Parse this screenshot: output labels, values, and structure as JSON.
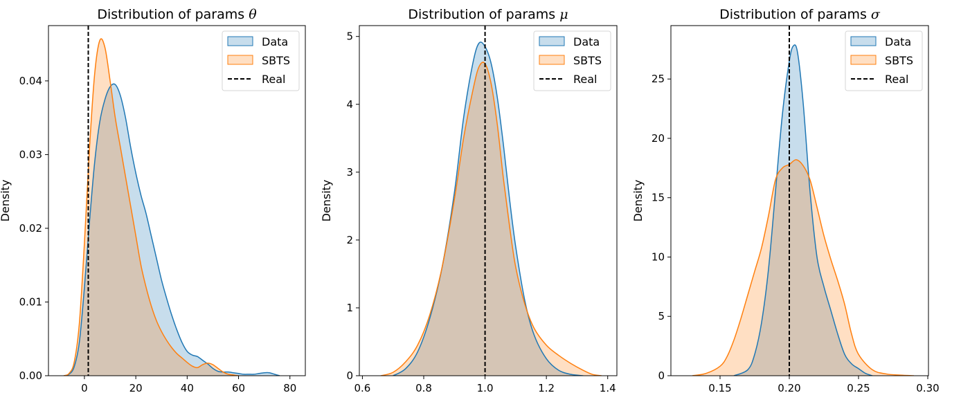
{
  "chart_data": [
    {
      "type": "area",
      "title": "Distribution of params θ",
      "title_text": "Distribution of params ",
      "title_symbol": "θ",
      "xlabel": "",
      "ylabel": "Density",
      "xlim": [
        -14,
        86
      ],
      "ylim": [
        0,
        0.0475
      ],
      "xticks": [
        0,
        20,
        40,
        60,
        80
      ],
      "xtick_labels": [
        "0",
        "20",
        "40",
        "60",
        "80"
      ],
      "yticks": [
        0,
        0.01,
        0.02,
        0.03,
        0.04
      ],
      "ytick_labels": [
        "0.00",
        "0.01",
        "0.02",
        "0.03",
        "0.04"
      ],
      "real_value": 1.5,
      "legend": {
        "placement": "top-right",
        "entries": [
          "Data",
          "SBTS",
          "Real"
        ]
      },
      "series": [
        {
          "name": "Data",
          "color": "#1f77b4",
          "x": [
            -8,
            -6,
            -4,
            -2,
            0,
            2,
            4,
            6,
            8,
            10,
            12,
            14,
            16,
            18,
            20,
            22,
            24,
            26,
            28,
            30,
            32,
            34,
            36,
            38,
            40,
            42,
            44,
            46,
            48,
            50,
            52,
            54,
            56,
            58,
            60,
            62,
            64,
            66,
            68,
            70,
            72,
            74,
            76
          ],
          "y": [
            0,
            0.0002,
            0.0012,
            0.0045,
            0.012,
            0.021,
            0.029,
            0.0345,
            0.0375,
            0.0392,
            0.0395,
            0.038,
            0.035,
            0.031,
            0.0275,
            0.0245,
            0.022,
            0.019,
            0.016,
            0.013,
            0.0105,
            0.0082,
            0.0062,
            0.0045,
            0.0033,
            0.0028,
            0.0026,
            0.0021,
            0.0016,
            0.001,
            0.0006,
            0.0005,
            0.0005,
            0.0004,
            0.0003,
            0.0002,
            0.0002,
            0.0002,
            0.0003,
            0.0004,
            0.0004,
            0.0002,
            0
          ]
        },
        {
          "name": "SBTS",
          "color": "#ff7f0e",
          "x": [
            -8,
            -6,
            -4,
            -2,
            0,
            2,
            4,
            6,
            8,
            10,
            12,
            14,
            16,
            18,
            20,
            22,
            24,
            26,
            28,
            30,
            32,
            34,
            36,
            38,
            40,
            42,
            44,
            46,
            48,
            50,
            52,
            54,
            56,
            58,
            60
          ],
          "y": [
            0,
            0.0003,
            0.0018,
            0.007,
            0.018,
            0.031,
            0.041,
            0.0455,
            0.0445,
            0.04,
            0.035,
            0.031,
            0.027,
            0.023,
            0.019,
            0.015,
            0.012,
            0.0095,
            0.0075,
            0.006,
            0.0048,
            0.0038,
            0.003,
            0.0024,
            0.0018,
            0.0013,
            0.0011,
            0.0015,
            0.0017,
            0.0015,
            0.001,
            0.0005,
            0.0002,
            0.0001,
            0
          ]
        }
      ]
    },
    {
      "type": "area",
      "title": "Distribution of params μ",
      "title_text": "Distribution of params ",
      "title_symbol": "μ",
      "xlabel": "",
      "ylabel": "Density",
      "xlim": [
        0.59,
        1.43
      ],
      "ylim": [
        0,
        5.16
      ],
      "xticks": [
        0.6,
        0.8,
        1.0,
        1.2,
        1.4
      ],
      "xtick_labels": [
        "0.6",
        "0.8",
        "1.0",
        "1.2",
        "1.4"
      ],
      "yticks": [
        0,
        1,
        2,
        3,
        4,
        5
      ],
      "ytick_labels": [
        "0",
        "1",
        "2",
        "3",
        "4",
        "5"
      ],
      "real_value": 1.0,
      "legend": {
        "placement": "top-right",
        "entries": [
          "Data",
          "SBTS",
          "Real"
        ]
      },
      "series": [
        {
          "name": "Data",
          "color": "#1f77b4",
          "x": [
            0.7,
            0.74,
            0.78,
            0.82,
            0.86,
            0.9,
            0.93,
            0.96,
            0.98,
            1.0,
            1.02,
            1.04,
            1.06,
            1.08,
            1.1,
            1.13,
            1.16,
            1.2,
            1.24,
            1.28,
            1.32
          ],
          "y": [
            0,
            0.1,
            0.35,
            0.85,
            1.6,
            2.7,
            3.8,
            4.6,
            4.9,
            4.85,
            4.6,
            4.1,
            3.4,
            2.6,
            1.9,
            1.1,
            0.6,
            0.25,
            0.08,
            0.02,
            0
          ]
        },
        {
          "name": "SBTS",
          "color": "#ff7f0e",
          "x": [
            0.66,
            0.7,
            0.74,
            0.78,
            0.82,
            0.86,
            0.9,
            0.93,
            0.96,
            0.98,
            1.0,
            1.02,
            1.04,
            1.06,
            1.08,
            1.1,
            1.13,
            1.16,
            1.2,
            1.24,
            1.28,
            1.32,
            1.35,
            1.38
          ],
          "y": [
            0,
            0.05,
            0.2,
            0.45,
            0.9,
            1.6,
            2.6,
            3.5,
            4.2,
            4.55,
            4.6,
            4.3,
            3.7,
            2.9,
            2.2,
            1.6,
            1.05,
            0.7,
            0.45,
            0.3,
            0.18,
            0.08,
            0.02,
            0
          ]
        }
      ]
    },
    {
      "type": "area",
      "title": "Distribution of params σ",
      "title_text": "Distribution of params ",
      "title_symbol": "σ",
      "xlabel": "",
      "ylabel": "Density",
      "xlim": [
        0.1145,
        0.3005
      ],
      "ylim": [
        0,
        29.5
      ],
      "xticks": [
        0.15,
        0.2,
        0.25,
        0.3
      ],
      "xtick_labels": [
        "0.15",
        "0.20",
        "0.25",
        "0.30"
      ],
      "yticks": [
        0,
        5,
        10,
        15,
        20,
        25
      ],
      "ytick_labels": [
        "0",
        "5",
        "10",
        "15",
        "20",
        "25"
      ],
      "real_value": 0.2,
      "legend": {
        "placement": "top-right",
        "entries": [
          "Data",
          "SBTS",
          "Real"
        ]
      },
      "series": [
        {
          "name": "Data",
          "color": "#1f77b4",
          "x": [
            0.16,
            0.17,
            0.175,
            0.18,
            0.185,
            0.19,
            0.195,
            0.2,
            0.203,
            0.206,
            0.21,
            0.215,
            0.22,
            0.225,
            0.23,
            0.235,
            0.24,
            0.245,
            0.25,
            0.255,
            0.26
          ],
          "y": [
            0,
            0.5,
            1.8,
            4.5,
            9,
            15.5,
            22,
            26.5,
            27.8,
            27.2,
            23,
            15.5,
            10,
            7.5,
            5.5,
            3.5,
            1.8,
            1,
            0.6,
            0.2,
            0
          ]
        },
        {
          "name": "SBTS",
          "color": "#ff7f0e",
          "x": [
            0.13,
            0.14,
            0.15,
            0.155,
            0.16,
            0.165,
            0.17,
            0.175,
            0.18,
            0.185,
            0.19,
            0.195,
            0.2,
            0.205,
            0.21,
            0.215,
            0.22,
            0.225,
            0.23,
            0.235,
            0.24,
            0.245,
            0.25,
            0.26,
            0.27,
            0.28,
            0.29
          ],
          "y": [
            0,
            0.2,
            0.8,
            1.6,
            3,
            4.8,
            6.8,
            8.8,
            10.8,
            13.5,
            16.5,
            17.5,
            17.8,
            18.2,
            17.7,
            16.5,
            14.2,
            11.8,
            9.8,
            8,
            6,
            3.5,
            1.8,
            0.5,
            0.15,
            0.05,
            0
          ]
        }
      ]
    }
  ]
}
